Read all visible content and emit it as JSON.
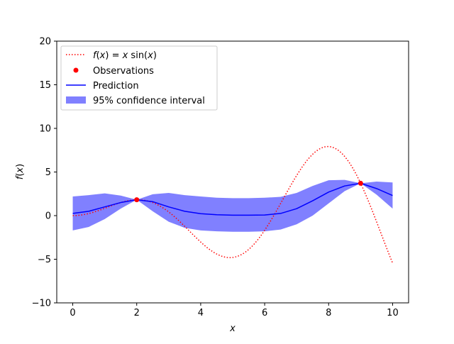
{
  "chart_data": {
    "type": "line",
    "title": "",
    "xlabel": "x",
    "ylabel": "f(x)",
    "xlim": [
      -0.5,
      10.5
    ],
    "ylim": [
      -10,
      20
    ],
    "xticks": [
      0,
      2,
      4,
      6,
      8,
      10
    ],
    "yticks": [
      -10,
      -5,
      0,
      5,
      10,
      15,
      20
    ],
    "grid": false,
    "legend_position": "top-left",
    "legend": [
      {
        "key": "truth",
        "label_prefix": "f",
        "label_paren_open": "(",
        "label_var": "x",
        "label_mid": ") = ",
        "label_var2": "x",
        "label_fn": " sin(",
        "label_var3": "x",
        "label_end": ")"
      },
      {
        "key": "obs",
        "label": "Observations"
      },
      {
        "key": "pred",
        "label": "Prediction"
      },
      {
        "key": "ci",
        "label": "95% confidence interval"
      }
    ],
    "observations": {
      "x": [
        2,
        9
      ],
      "y": [
        1.82,
        3.71
      ]
    },
    "prediction": {
      "x": [
        0,
        0.5,
        1,
        1.5,
        2,
        2.5,
        3,
        3.5,
        4,
        4.5,
        5,
        5.5,
        6,
        6.5,
        7,
        7.5,
        8,
        8.5,
        9,
        9.5,
        10
      ],
      "y": [
        0.25,
        0.5,
        1.0,
        1.5,
        1.82,
        1.6,
        1.0,
        0.5,
        0.22,
        0.1,
        0.05,
        0.05,
        0.07,
        0.25,
        0.8,
        1.7,
        2.7,
        3.4,
        3.71,
        3.1,
        2.3
      ]
    },
    "confidence_interval": {
      "x": [
        0,
        0.5,
        1,
        1.5,
        2,
        2.5,
        3,
        3.5,
        4,
        4.5,
        5,
        5.5,
        6,
        6.5,
        7,
        7.5,
        8,
        8.5,
        9,
        9.5,
        10
      ],
      "lower": [
        -1.7,
        -1.3,
        -0.4,
        0.8,
        1.82,
        0.5,
        -0.7,
        -1.4,
        -1.7,
        -1.8,
        -1.85,
        -1.85,
        -1.8,
        -1.6,
        -1.0,
        0.0,
        1.4,
        2.8,
        3.71,
        2.4,
        0.8
      ],
      "upper": [
        2.2,
        2.35,
        2.55,
        2.3,
        1.82,
        2.45,
        2.6,
        2.35,
        2.2,
        2.05,
        2.0,
        2.0,
        2.05,
        2.15,
        2.6,
        3.4,
        4.05,
        4.1,
        3.71,
        3.9,
        3.8
      ]
    },
    "truth": {
      "function": "x*sin(x)",
      "x_range": [
        0,
        10
      ]
    },
    "colors": {
      "truth": "#ff0000",
      "obs": "#ff0000",
      "pred": "#0000ff",
      "ci": "#8080ff"
    }
  }
}
